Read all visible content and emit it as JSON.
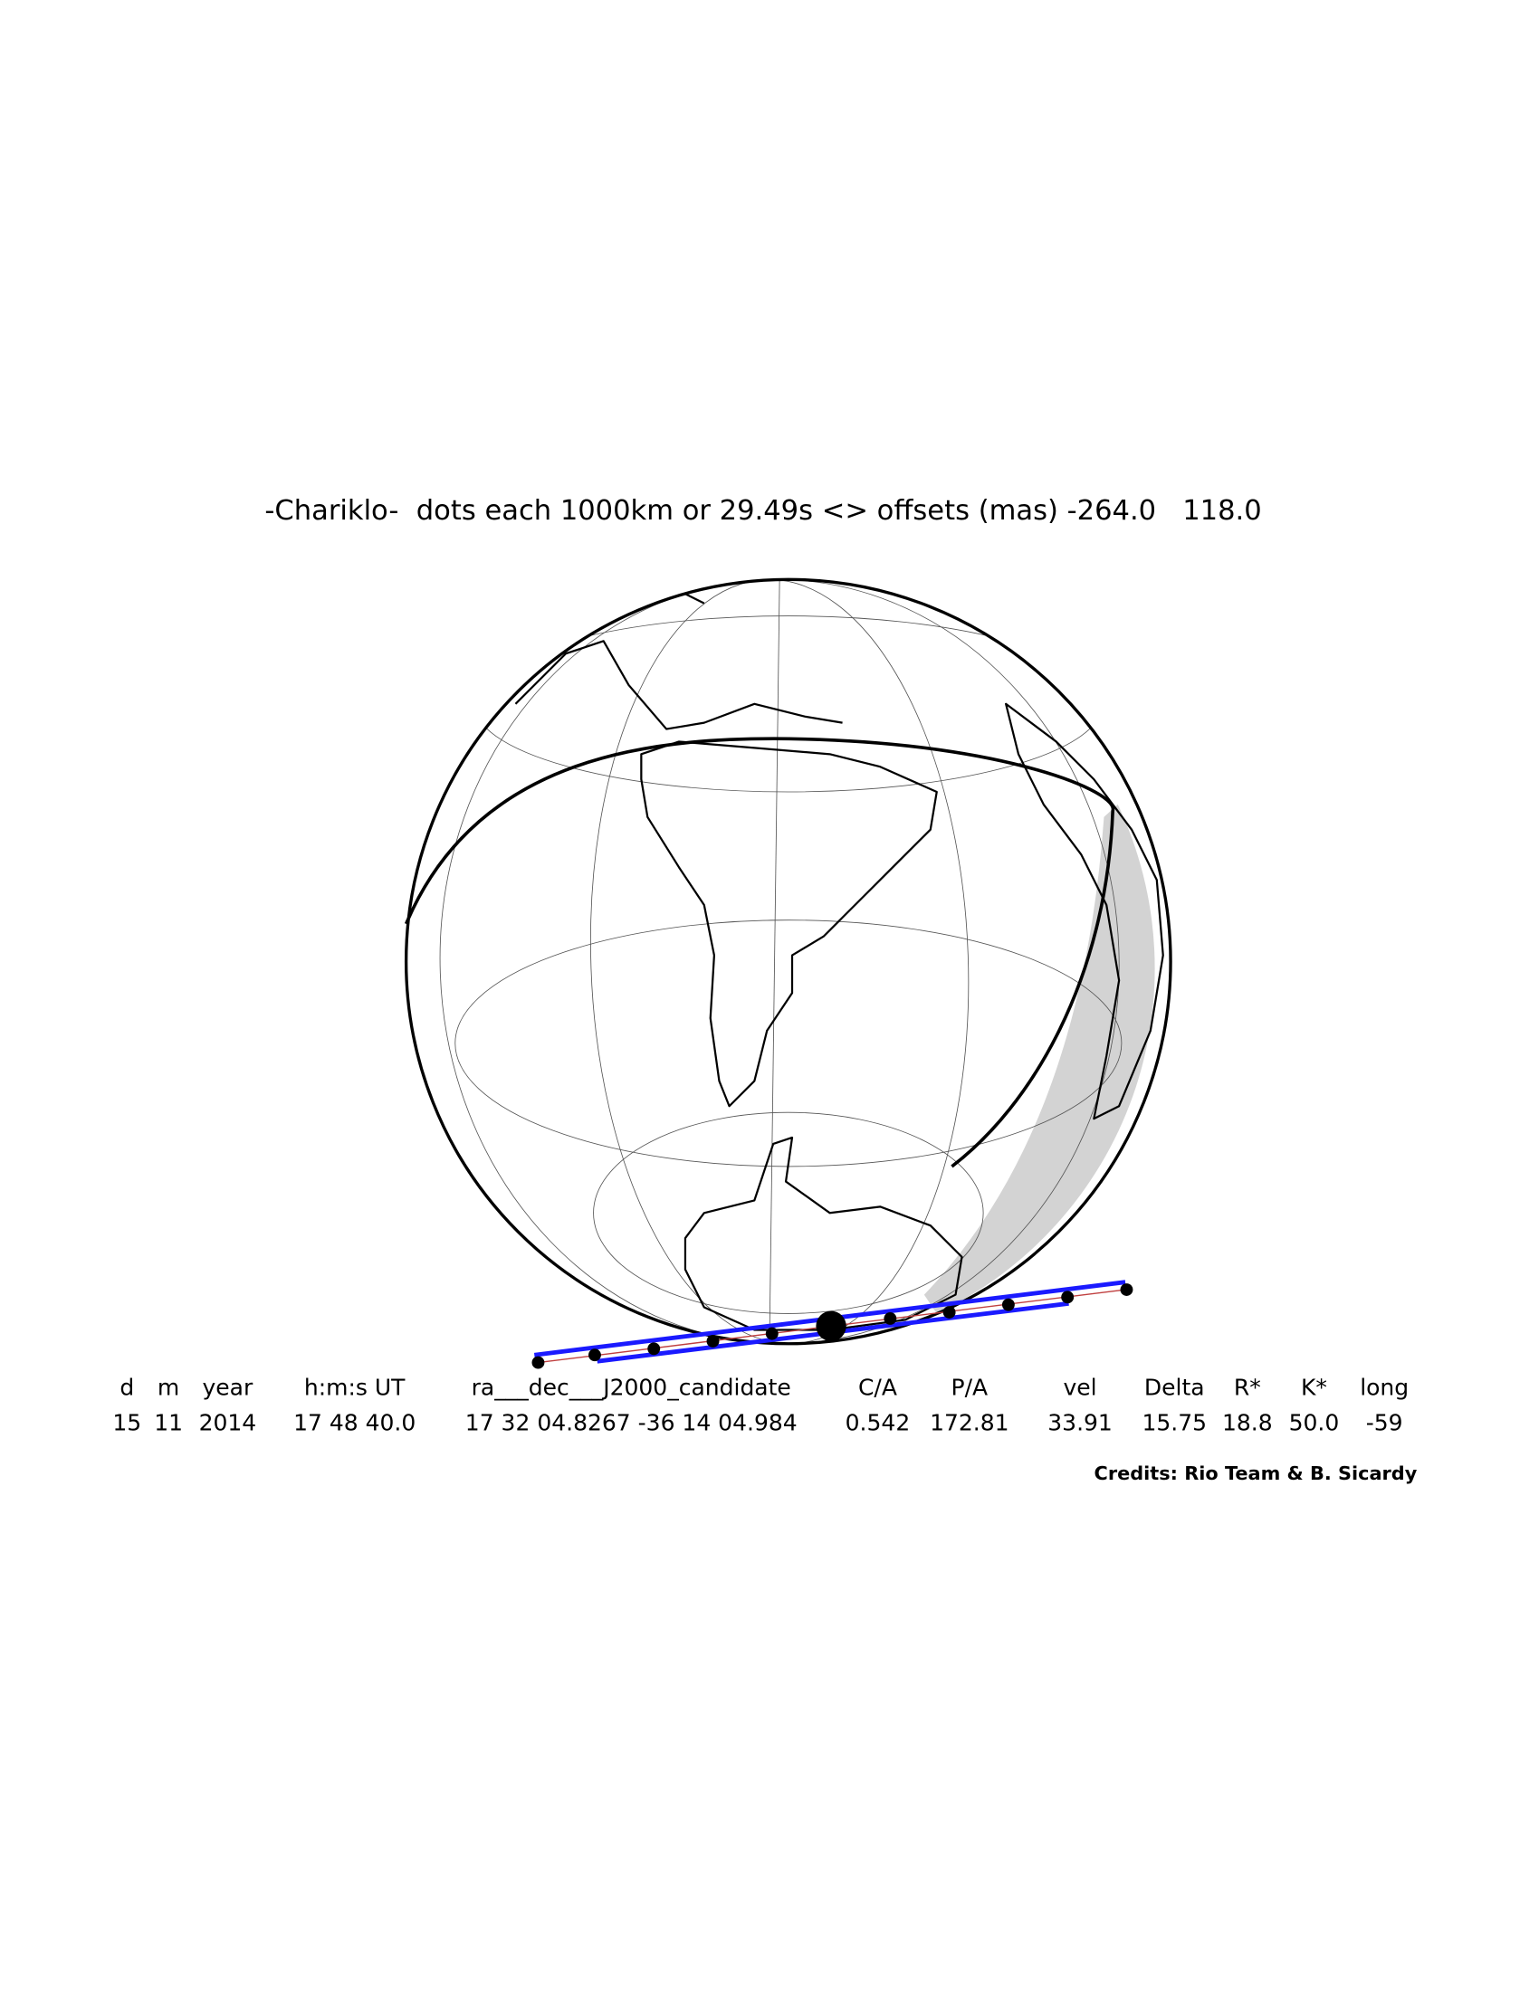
{
  "title": "-Chariklo-  dots each 1000km or 29.49s <> offsets (mas) -264.0   118.0",
  "table": {
    "headers": [
      "d",
      "m",
      "year",
      "h:m:s UT",
      "ra___dec___J2000_candidate",
      "C/A",
      "P/A",
      "vel",
      "Delta",
      "R*",
      "K*",
      "long"
    ],
    "values": [
      "15",
      "11",
      "2014",
      "17 48 40.0",
      "17 32 04.8267 -36 14 04.984",
      "0.542",
      "172.81",
      "33.91",
      "15.75",
      "18.8",
      "50.0",
      "-59"
    ]
  },
  "credits": "Credits: Rio Team & B. Sicardy"
}
